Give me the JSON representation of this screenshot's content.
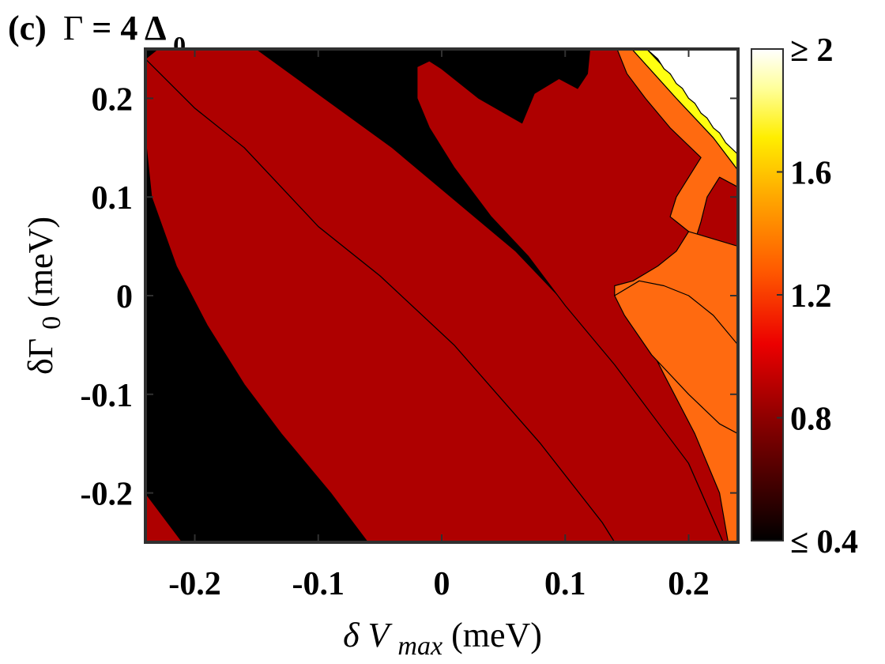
{
  "chart_data": {
    "type": "heatmap",
    "title": {
      "panel": "(c)",
      "gamma_symbol": "Γ",
      "equals": " = 4",
      "delta_symbol": "Δ",
      "delta_sub": "0"
    },
    "xlabel": {
      "prefix": "δ",
      "italic": "V",
      "sub": "max",
      "unit": " (meV)"
    },
    "ylabel": {
      "prefix": "δΓ",
      "sub": "0",
      "unit": " (meV)"
    },
    "xlim": [
      -0.24,
      0.24
    ],
    "ylim": [
      -0.25,
      0.25
    ],
    "x_ticks": [
      -0.2,
      -0.1,
      0,
      0.1,
      0.2
    ],
    "x_tick_labels": [
      "-0.2",
      "-0.1",
      "0",
      "0.1",
      "0.2"
    ],
    "y_ticks": [
      -0.2,
      -0.1,
      0,
      0.1,
      0.2
    ],
    "y_tick_labels": [
      "-0.2",
      "-0.1",
      "0",
      "0.1",
      "0.2"
    ],
    "colorbar": {
      "range": [
        0.4,
        2.0
      ],
      "ticks": [
        0.4,
        0.8,
        1.2,
        1.6,
        2.0
      ],
      "tick_labels": [
        "≤ 0.4",
        "0.8",
        "1.2",
        "1.6",
        "≥ 2"
      ]
    },
    "colors": {
      "level_black": "#000000",
      "level_red": "#ae0000",
      "level_orange": "#ff6a10",
      "level_yellow": "#ffff10",
      "level_white": "#ffffff",
      "contour_line": "#000000",
      "frame": "#303030"
    },
    "regions": [
      {
        "level": "level_black",
        "polygon": [
          [
            -0.24,
            0.25
          ],
          [
            -0.245,
            0.25
          ],
          [
            -0.245,
            -0.255
          ],
          [
            -0.24,
            -0.255
          ]
        ]
      },
      {
        "level": "level_red",
        "polygon": [
          [
            -0.24,
            -0.2
          ],
          [
            -0.24,
            -0.25
          ],
          [
            -0.21,
            -0.25
          ]
        ]
      },
      {
        "level": "level_red",
        "polygon": [
          [
            -0.24,
            0.24
          ],
          [
            -0.23,
            0.25
          ],
          [
            -0.15,
            0.25
          ],
          [
            -0.04,
            0.15
          ],
          [
            0.06,
            0.045
          ],
          [
            0.14,
            -0.06
          ],
          [
            0.2,
            -0.17
          ],
          [
            0.228,
            -0.25
          ],
          [
            0.22,
            -0.25
          ],
          [
            0.14,
            -0.25
          ],
          [
            0.13,
            -0.23
          ],
          [
            0.08,
            -0.15
          ],
          [
            0.01,
            -0.05
          ],
          [
            -0.05,
            0.02
          ],
          [
            -0.1,
            0.07
          ],
          [
            -0.13,
            0.11
          ],
          [
            -0.16,
            0.15
          ],
          [
            -0.2,
            0.19
          ]
        ]
      },
      {
        "level": "level_red",
        "polygon": [
          [
            -0.24,
            0.24
          ],
          [
            -0.2,
            0.19
          ],
          [
            -0.16,
            0.15
          ],
          [
            -0.13,
            0.11
          ],
          [
            -0.1,
            0.07
          ],
          [
            -0.05,
            0.02
          ],
          [
            0.01,
            -0.05
          ],
          [
            0.08,
            -0.15
          ],
          [
            0.13,
            -0.23
          ],
          [
            0.14,
            -0.25
          ],
          [
            -0.06,
            -0.25
          ],
          [
            -0.09,
            -0.2
          ],
          [
            -0.13,
            -0.14
          ],
          [
            -0.16,
            -0.09
          ],
          [
            -0.19,
            -0.03
          ],
          [
            -0.215,
            0.03
          ],
          [
            -0.235,
            0.1
          ],
          [
            -0.24,
            0.16
          ]
        ]
      },
      {
        "level": "level_red",
        "polygon": [
          [
            -0.02,
            0.232
          ],
          [
            -0.01,
            0.238
          ],
          [
            0.0,
            0.23
          ],
          [
            0.03,
            0.2
          ],
          [
            0.065,
            0.175
          ],
          [
            0.075,
            0.205
          ],
          [
            0.095,
            0.22
          ],
          [
            0.11,
            0.21
          ],
          [
            0.118,
            0.225
          ],
          [
            0.12,
            0.25
          ],
          [
            0.142,
            0.25
          ],
          [
            0.17,
            0.2
          ],
          [
            0.21,
            0.15
          ],
          [
            0.24,
            0.11
          ],
          [
            0.24,
            -0.25
          ],
          [
            0.228,
            -0.25
          ],
          [
            0.2,
            -0.17
          ],
          [
            0.17,
            -0.12
          ],
          [
            0.14,
            -0.07
          ],
          [
            0.1,
            -0.01
          ],
          [
            0.07,
            0.04
          ],
          [
            0.04,
            0.08
          ],
          [
            0.01,
            0.13
          ],
          [
            -0.01,
            0.17
          ],
          [
            -0.02,
            0.2
          ]
        ]
      },
      {
        "level": "level_orange",
        "polygon": [
          [
            0.142,
            0.25
          ],
          [
            0.154,
            0.25
          ],
          [
            0.19,
            0.2
          ],
          [
            0.22,
            0.16
          ],
          [
            0.24,
            0.127
          ],
          [
            0.24,
            0.11
          ],
          [
            0.225,
            0.12
          ],
          [
            0.215,
            0.1
          ],
          [
            0.21,
            0.075
          ],
          [
            0.205,
            0.055
          ],
          [
            0.2,
            0.065
          ],
          [
            0.19,
            0.075
          ],
          [
            0.185,
            0.08
          ],
          [
            0.19,
            0.1
          ],
          [
            0.2,
            0.12
          ],
          [
            0.21,
            0.14
          ],
          [
            0.185,
            0.17
          ],
          [
            0.165,
            0.2
          ],
          [
            0.15,
            0.225
          ]
        ]
      },
      {
        "level": "level_orange",
        "polygon": [
          [
            0.2,
            0.065
          ],
          [
            0.24,
            0.05
          ],
          [
            0.24,
            -0.25
          ],
          [
            0.232,
            -0.25
          ],
          [
            0.225,
            -0.2
          ],
          [
            0.205,
            -0.14
          ],
          [
            0.18,
            -0.08
          ],
          [
            0.16,
            -0.03
          ],
          [
            0.14,
            0.0
          ],
          [
            0.14,
            0.01
          ],
          [
            0.155,
            0.015
          ],
          [
            0.175,
            0.03
          ],
          [
            0.19,
            0.045
          ]
        ]
      },
      {
        "level": "level_orange",
        "polygon": [
          [
            0.14,
            0.0
          ],
          [
            0.148,
            -0.02
          ],
          [
            0.17,
            -0.06
          ],
          [
            0.2,
            -0.1
          ],
          [
            0.225,
            -0.13
          ],
          [
            0.24,
            -0.14
          ],
          [
            0.24,
            -0.05
          ],
          [
            0.22,
            -0.02
          ],
          [
            0.2,
            0.0
          ],
          [
            0.18,
            0.01
          ],
          [
            0.16,
            0.015
          ]
        ]
      },
      {
        "level": "level_yellow",
        "polygon": [
          [
            0.154,
            0.25
          ],
          [
            0.166,
            0.25
          ],
          [
            0.2,
            0.205
          ],
          [
            0.225,
            0.165
          ],
          [
            0.24,
            0.143
          ],
          [
            0.24,
            0.127
          ],
          [
            0.22,
            0.16
          ],
          [
            0.19,
            0.2
          ]
        ]
      },
      {
        "level": "level_white",
        "polygon": [
          [
            0.166,
            0.25
          ],
          [
            0.24,
            0.25
          ],
          [
            0.24,
            0.143
          ],
          [
            0.23,
            0.155
          ],
          [
            0.225,
            0.165
          ],
          [
            0.22,
            0.17
          ],
          [
            0.215,
            0.18
          ],
          [
            0.21,
            0.185
          ],
          [
            0.205,
            0.195
          ],
          [
            0.2,
            0.2
          ],
          [
            0.195,
            0.21
          ],
          [
            0.19,
            0.215
          ],
          [
            0.185,
            0.225
          ],
          [
            0.18,
            0.23
          ],
          [
            0.175,
            0.24
          ]
        ]
      }
    ]
  }
}
